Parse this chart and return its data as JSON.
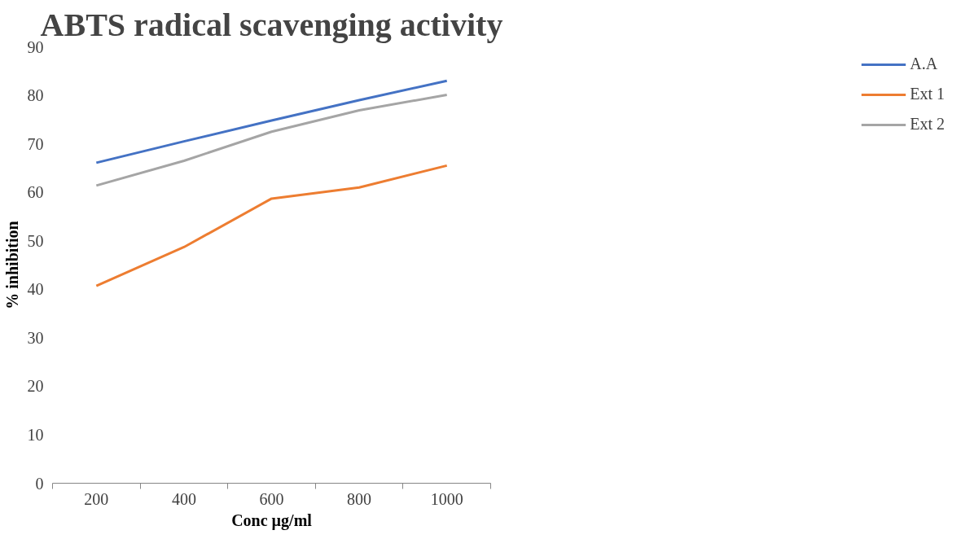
{
  "chart_data": {
    "type": "line",
    "title": "ABTS radical scavenging activity",
    "xlabel": "Conc µg/ml",
    "ylabel": "% inhibition",
    "categories": [
      "200",
      "400",
      "600",
      "800",
      "1000"
    ],
    "series": [
      {
        "name": "A.A",
        "color": "#4472c4",
        "values": [
          66.1,
          70.5,
          74.8,
          79.0,
          83.0
        ]
      },
      {
        "name": "Ext 1",
        "color": "#ed7d31",
        "values": [
          40.7,
          48.7,
          58.7,
          61.0,
          65.5
        ]
      },
      {
        "name": "Ext 2",
        "color": "#a5a5a5",
        "values": [
          61.4,
          66.5,
          72.5,
          76.9,
          80.1
        ]
      }
    ],
    "ylim": [
      0,
      90
    ],
    "yticks": [
      0,
      10,
      20,
      30,
      40,
      50,
      60,
      70,
      80,
      90
    ],
    "grid": false,
    "legend": "right",
    "marker": "none",
    "line_style": "solid"
  }
}
